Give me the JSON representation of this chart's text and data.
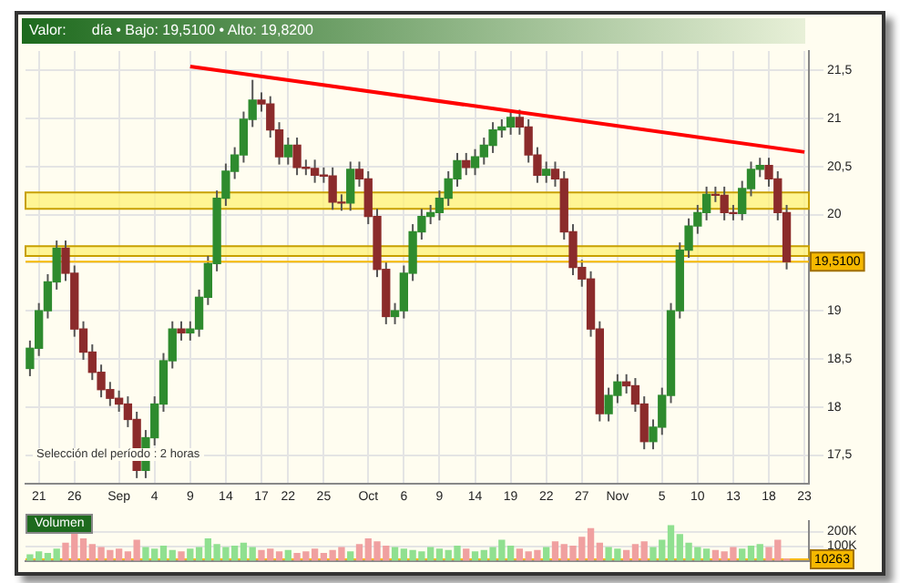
{
  "chart_data": [
    {
      "type": "candlestick",
      "title": "Valor:",
      "subtitle": "día • Bajo: 19,5100 • Alto: 19,8200",
      "categories": [
        null,
        "21",
        null,
        null,
        null,
        "26",
        null,
        null,
        null,
        null,
        "Sep",
        null,
        null,
        null,
        "4",
        null,
        null,
        null,
        "9",
        null,
        null,
        null,
        "14",
        null,
        null,
        null,
        "17",
        null,
        null,
        "22",
        null,
        null,
        null,
        "25",
        null,
        null,
        null,
        null,
        "Oct",
        null,
        null,
        null,
        "6",
        null,
        null,
        null,
        "9",
        null,
        null,
        null,
        "14",
        null,
        null,
        null,
        "19",
        null,
        null,
        null,
        "22",
        null,
        null,
        null,
        "27",
        null,
        null,
        null,
        "Nov",
        null,
        null,
        null,
        null,
        "5",
        null,
        null,
        null,
        "10",
        null,
        null,
        null,
        "13",
        null,
        null,
        null,
        "18",
        null,
        null,
        null,
        "23"
      ],
      "ohlc": [
        [
          18.4,
          18.69,
          18.32,
          18.61
        ],
        [
          18.61,
          19.08,
          18.53,
          19.0
        ],
        [
          19.0,
          19.38,
          18.92,
          19.3
        ],
        [
          19.3,
          19.73,
          19.22,
          19.65
        ],
        [
          19.65,
          19.73,
          19.31,
          19.39
        ],
        [
          19.39,
          19.47,
          18.73,
          18.81
        ],
        [
          18.81,
          18.89,
          18.49,
          18.57
        ],
        [
          18.57,
          18.65,
          18.28,
          18.36
        ],
        [
          18.36,
          18.44,
          18.1,
          18.18
        ],
        [
          18.18,
          18.26,
          18.01,
          18.09
        ],
        [
          18.09,
          18.17,
          17.95,
          18.03
        ],
        [
          18.03,
          18.11,
          17.79,
          17.87
        ],
        [
          17.87,
          17.95,
          17.26,
          17.34
        ],
        [
          17.34,
          17.76,
          17.26,
          17.68
        ],
        [
          17.68,
          18.11,
          17.6,
          18.03
        ],
        [
          18.03,
          18.56,
          17.95,
          18.48
        ],
        [
          18.48,
          18.89,
          18.4,
          18.81
        ],
        [
          18.81,
          18.89,
          18.69,
          18.77
        ],
        [
          18.77,
          18.89,
          18.69,
          18.81
        ],
        [
          18.81,
          19.22,
          18.73,
          19.14
        ],
        [
          19.14,
          19.57,
          19.06,
          19.49
        ],
        [
          19.49,
          20.25,
          19.41,
          20.17
        ],
        [
          20.17,
          20.53,
          20.09,
          20.45
        ],
        [
          20.45,
          20.7,
          20.37,
          20.62
        ],
        [
          20.62,
          21.07,
          20.54,
          20.99
        ],
        [
          20.99,
          21.4,
          20.91,
          21.19
        ],
        [
          21.19,
          21.27,
          21.07,
          21.15
        ],
        [
          21.15,
          21.23,
          20.8,
          20.88
        ],
        [
          20.88,
          20.96,
          20.52,
          20.6
        ],
        [
          20.6,
          20.8,
          20.52,
          20.72
        ],
        [
          20.72,
          20.8,
          20.41,
          20.49
        ],
        [
          20.49,
          20.57,
          20.41,
          20.48
        ],
        [
          20.48,
          20.57,
          20.33,
          20.41
        ],
        [
          20.41,
          20.49,
          20.33,
          20.4
        ],
        [
          20.4,
          20.49,
          20.05,
          20.13
        ],
        [
          20.13,
          20.21,
          20.04,
          20.12
        ],
        [
          20.12,
          20.55,
          20.04,
          20.47
        ],
        [
          20.47,
          20.55,
          20.29,
          20.37
        ],
        [
          20.37,
          20.45,
          19.9,
          19.98
        ],
        [
          19.98,
          20.06,
          19.35,
          19.43
        ],
        [
          19.43,
          19.51,
          18.86,
          18.94
        ],
        [
          18.94,
          19.08,
          18.86,
          19.0
        ],
        [
          19.0,
          19.47,
          18.92,
          19.39
        ],
        [
          19.39,
          19.9,
          19.31,
          19.82
        ],
        [
          19.82,
          20.06,
          19.74,
          19.98
        ],
        [
          19.98,
          20.1,
          19.9,
          20.02
        ],
        [
          20.02,
          20.25,
          19.94,
          20.17
        ],
        [
          20.17,
          20.45,
          20.09,
          20.37
        ],
        [
          20.37,
          20.64,
          20.29,
          20.56
        ],
        [
          20.56,
          20.64,
          20.41,
          20.49
        ],
        [
          20.49,
          20.68,
          20.41,
          20.6
        ],
        [
          20.6,
          20.8,
          20.52,
          20.72
        ],
        [
          20.72,
          20.96,
          20.64,
          20.88
        ],
        [
          20.88,
          20.99,
          20.8,
          20.91
        ],
        [
          20.91,
          21.09,
          20.83,
          21.01
        ],
        [
          21.01,
          21.09,
          20.83,
          20.91
        ],
        [
          20.91,
          20.99,
          20.54,
          20.62
        ],
        [
          20.62,
          20.7,
          20.33,
          20.41
        ],
        [
          20.41,
          20.55,
          20.33,
          20.47
        ],
        [
          20.47,
          20.55,
          20.29,
          20.37
        ],
        [
          20.37,
          20.45,
          19.74,
          19.82
        ],
        [
          19.82,
          19.9,
          19.37,
          19.45
        ],
        [
          19.45,
          19.53,
          19.25,
          19.33
        ],
        [
          19.33,
          19.41,
          18.73,
          18.81
        ],
        [
          18.81,
          18.89,
          17.85,
          17.93
        ],
        [
          17.93,
          18.2,
          17.85,
          18.12
        ],
        [
          18.12,
          18.34,
          18.04,
          18.26
        ],
        [
          18.26,
          18.34,
          18.14,
          18.22
        ],
        [
          18.22,
          18.3,
          17.95,
          18.03
        ],
        [
          18.03,
          18.11,
          17.56,
          17.64
        ],
        [
          17.64,
          17.87,
          17.56,
          17.79
        ],
        [
          17.79,
          18.2,
          17.71,
          18.12
        ],
        [
          18.12,
          19.08,
          18.04,
          19.0
        ],
        [
          19.0,
          19.71,
          18.92,
          19.63
        ],
        [
          19.63,
          19.96,
          19.55,
          19.88
        ],
        [
          19.88,
          20.1,
          19.8,
          20.02
        ],
        [
          20.02,
          20.29,
          19.94,
          20.21
        ],
        [
          20.21,
          20.29,
          20.13,
          20.2
        ],
        [
          20.2,
          20.29,
          19.94,
          20.02
        ],
        [
          20.02,
          20.1,
          19.94,
          20.01
        ],
        [
          20.01,
          20.35,
          19.94,
          20.27
        ],
        [
          20.27,
          20.55,
          20.19,
          20.47
        ],
        [
          20.47,
          20.59,
          20.39,
          20.51
        ],
        [
          20.51,
          20.59,
          20.29,
          20.37
        ],
        [
          20.37,
          20.45,
          19.94,
          20.02
        ],
        [
          20.02,
          20.1,
          19.43,
          19.51
        ],
        null,
        null
      ],
      "series": [
        {
          "type": "line",
          "values": [
            null,
            null,
            null,
            null,
            null,
            null,
            null,
            null,
            null,
            null,
            null,
            null,
            null,
            null,
            null,
            null,
            null,
            null,
            21.54,
            null,
            null,
            null,
            null,
            null,
            null,
            null,
            null,
            null,
            null,
            null,
            null,
            null,
            null,
            null,
            null,
            null,
            null,
            null,
            null,
            null,
            null,
            null,
            null,
            null,
            null,
            null,
            null,
            null,
            null,
            null,
            null,
            null,
            null,
            null,
            null,
            null,
            null,
            null,
            null,
            null,
            null,
            null,
            null,
            null,
            null,
            null,
            null,
            null,
            null,
            null,
            null,
            null,
            null,
            null,
            null,
            null,
            null,
            null,
            null,
            null,
            null,
            null,
            null,
            null,
            null,
            null,
            null,
            20.65
          ],
          "color": "#ff0000"
        }
      ],
      "ylim": [
        17.2,
        21.7
      ],
      "yticks": [
        {
          "value": 17.5,
          "label": "17,5"
        },
        {
          "value": 18,
          "label": "18"
        },
        {
          "value": 18.5,
          "label": "18,5"
        },
        {
          "value": 19,
          "label": "19"
        },
        {
          "value": 19.5,
          "label": null
        },
        {
          "value": 20,
          "label": "20"
        },
        {
          "value": 20.5,
          "label": "20,5"
        },
        {
          "value": 21,
          "label": "21"
        },
        {
          "value": 21.5,
          "label": "21,5"
        }
      ],
      "bands": [
        {
          "axis": "y",
          "from": 20.06,
          "to": 20.23,
          "color": "#fff176"
        },
        {
          "axis": "y",
          "from": 19.57,
          "to": 19.67,
          "color": "#fff176"
        }
      ],
      "ref_lines": [
        {
          "axis": "y",
          "value": 19.51,
          "label": "19,5100",
          "color": "#f5b800"
        }
      ],
      "annotations": [
        "Selección del período : 2 horas"
      ],
      "grid": true
    },
    {
      "type": "bar",
      "title": "Volumen",
      "categories": [
        null,
        null,
        null,
        null,
        null,
        null,
        null,
        null,
        null,
        null,
        null,
        null,
        null,
        null,
        null,
        null,
        null,
        null,
        null,
        null,
        null,
        null,
        null,
        null,
        null,
        null,
        null,
        null,
        null,
        null,
        null,
        null,
        null,
        null,
        null,
        null,
        null,
        null,
        null,
        null,
        null,
        null,
        null,
        null,
        null,
        null,
        null,
        null,
        null,
        null,
        null,
        null,
        null,
        null,
        null,
        null,
        null,
        null,
        null,
        null,
        null,
        null,
        null,
        null,
        null,
        null,
        null,
        null,
        null,
        null,
        null,
        null,
        null,
        null,
        null,
        null,
        null,
        null,
        null,
        null,
        null,
        null,
        null,
        null,
        null,
        null,
        null,
        null
      ],
      "values": [
        40,
        60,
        50,
        80,
        120,
        200,
        150,
        110,
        90,
        70,
        80,
        60,
        140,
        90,
        80,
        100,
        70,
        60,
        80,
        90,
        150,
        110,
        90,
        100,
        120,
        90,
        70,
        80,
        60,
        70,
        50,
        60,
        80,
        50,
        70,
        90,
        60,
        110,
        150,
        130,
        100,
        90,
        80,
        70,
        60,
        90,
        80,
        70,
        100,
        80,
        60,
        70,
        90,
        140,
        100,
        80,
        60,
        70,
        90,
        130,
        110,
        100,
        160,
        220,
        120,
        90,
        80,
        70,
        110,
        130,
        90,
        140,
        240,
        180,
        120,
        90,
        80,
        70,
        60,
        90,
        80,
        100,
        110,
        90,
        140,
        10,
        null,
        null
      ],
      "colors": [
        "#90e090",
        "#90e090",
        "#90e090",
        "#90e090",
        "#f0a0a0",
        "#f0a0a0",
        "#f0a0a0",
        "#f0a0a0",
        "#f0a0a0",
        "#f0a0a0",
        "#f0a0a0",
        "#f0a0a0",
        "#f0a0a0",
        "#90e090",
        "#90e090",
        "#90e090",
        "#90e090",
        "#f0a0a0",
        "#90e090",
        "#90e090",
        "#90e090",
        "#90e090",
        "#90e090",
        "#90e090",
        "#90e090",
        "#90e090",
        "#f0a0a0",
        "#f0a0a0",
        "#f0a0a0",
        "#90e090",
        "#f0a0a0",
        "#f0a0a0",
        "#f0a0a0",
        "#f0a0a0",
        "#f0a0a0",
        "#f0a0a0",
        "#90e090",
        "#f0a0a0",
        "#f0a0a0",
        "#f0a0a0",
        "#f0a0a0",
        "#90e090",
        "#90e090",
        "#90e090",
        "#90e090",
        "#90e090",
        "#90e090",
        "#90e090",
        "#90e090",
        "#f0a0a0",
        "#90e090",
        "#90e090",
        "#90e090",
        "#90e090",
        "#90e090",
        "#f0a0a0",
        "#f0a0a0",
        "#f0a0a0",
        "#90e090",
        "#f0a0a0",
        "#f0a0a0",
        "#f0a0a0",
        "#f0a0a0",
        "#f0a0a0",
        "#f0a0a0",
        "#90e090",
        "#90e090",
        "#f0a0a0",
        "#f0a0a0",
        "#f0a0a0",
        "#90e090",
        "#90e090",
        "#90e090",
        "#90e090",
        "#90e090",
        "#90e090",
        "#90e090",
        "#f0a0a0",
        "#f0a0a0",
        "#f0a0a0",
        "#90e090",
        "#90e090",
        "#90e090",
        "#f0a0a0",
        "#f0a0a0",
        "#f0a0a0",
        "#90e090",
        "#90e090"
      ],
      "ylim": [
        0,
        270
      ],
      "yticks": [
        {
          "value": 100,
          "label": "100K"
        },
        {
          "value": 200,
          "label": "200K"
        }
      ],
      "ref_lines": [
        {
          "axis": "y",
          "value": 10.263,
          "label": "10263",
          "color": "#f5b800"
        }
      ],
      "tick_labels": "y",
      "grid": true
    }
  ]
}
